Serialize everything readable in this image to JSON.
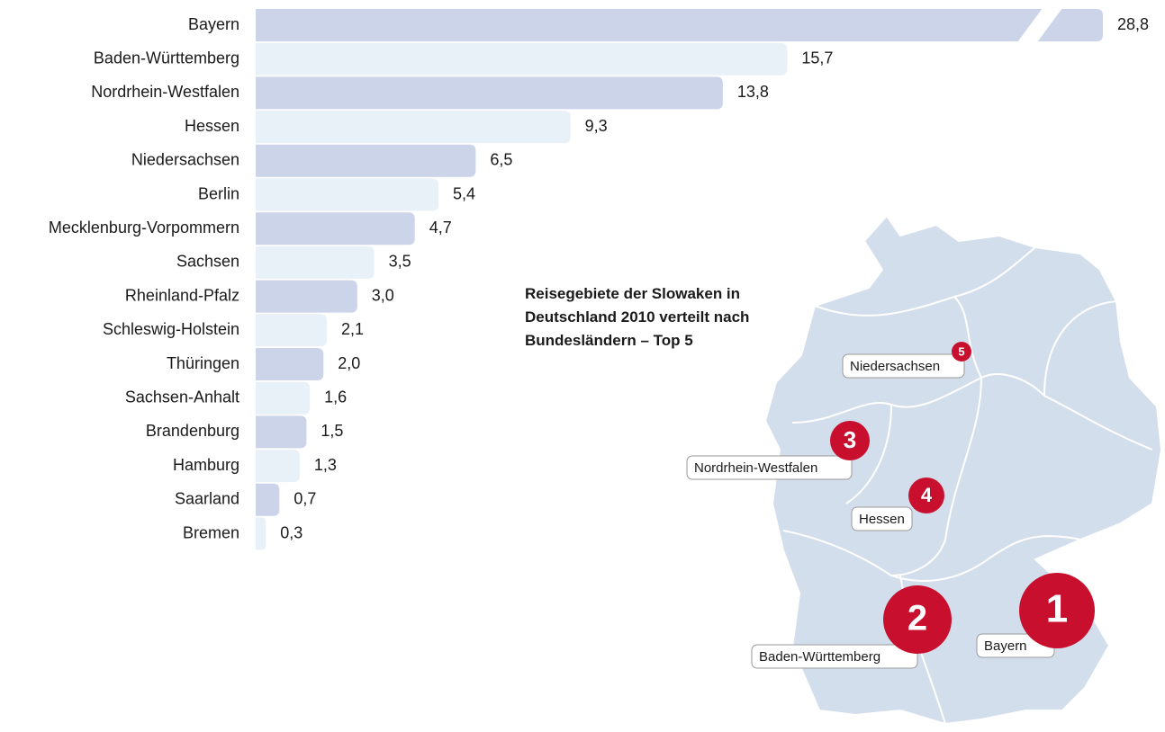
{
  "chart_data": {
    "type": "bar",
    "orientation": "horizontal",
    "title": "Reisegebiete der Slowaken in Deutschland 2010 verteilt nach Bundesländern – Top 5",
    "categories": [
      "Bayern",
      "Baden-Württemberg",
      "Nordrhein-Westfalen",
      "Hessen",
      "Niedersachsen",
      "Berlin",
      "Mecklenburg-Vorpommern",
      "Sachsen",
      "Rheinland-Pfalz",
      "Schleswig-Holstein",
      "Thüringen",
      "Sachsen-Anhalt",
      "Brandenburg",
      "Hamburg",
      "Saarland",
      "Bremen"
    ],
    "values": [
      28.8,
      15.7,
      13.8,
      9.3,
      6.5,
      5.4,
      4.7,
      3.5,
      3.0,
      2.1,
      2.0,
      1.6,
      1.5,
      1.3,
      0.7,
      0.3
    ],
    "value_labels": [
      "28,8",
      "15,7",
      "13,8",
      "9,3",
      "6,5",
      "5,4",
      "4,7",
      "3,5",
      "3,0",
      "2,1",
      "2,0",
      "1,6",
      "1,5",
      "1,3",
      "0,7",
      "0,3"
    ],
    "colors": [
      "#cbd4e8",
      "#e9f1f8"
    ],
    "xlim": [
      0,
      16
    ],
    "axis_break": true,
    "annotations": [
      {
        "rank": 1,
        "label": "Bayern"
      },
      {
        "rank": 2,
        "label": "Baden-Württemberg"
      },
      {
        "rank": 3,
        "label": "Nordrhein-Westfalen"
      },
      {
        "rank": 4,
        "label": "Hessen"
      },
      {
        "rank": 5,
        "label": "Niedersachsen"
      }
    ]
  }
}
